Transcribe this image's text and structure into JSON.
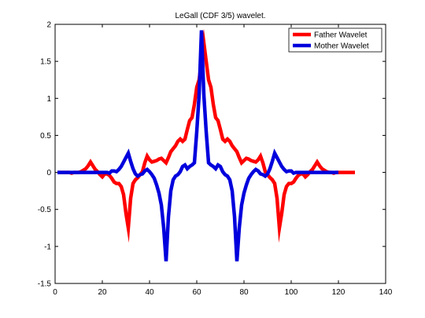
{
  "chart_data": {
    "type": "line",
    "title": "LeGall (CDF 3/5) wavelet.",
    "xlabel": "",
    "ylabel": "",
    "xlim": [
      0,
      140
    ],
    "ylim": [
      -1.5,
      2
    ],
    "xticks": [
      0,
      20,
      40,
      60,
      80,
      100,
      120,
      140
    ],
    "yticks": [
      -1.5,
      -1,
      -0.5,
      0,
      0.5,
      1,
      1.5,
      2
    ],
    "grid": false,
    "legend_position": "top-right",
    "series": [
      {
        "name": "Father Wavelet",
        "color": "#ff0000",
        "x": [
          1,
          2,
          3,
          4,
          5,
          6,
          7,
          8,
          9,
          10,
          11,
          12,
          13,
          14,
          15,
          16,
          17,
          18,
          19,
          20,
          21,
          22,
          23,
          24,
          25,
          26,
          27,
          28,
          29,
          30,
          31,
          32,
          33,
          34,
          35,
          36,
          37,
          38,
          39,
          40,
          41,
          42,
          43,
          44,
          45,
          46,
          47,
          48,
          49,
          50,
          51,
          52,
          53,
          54,
          55,
          56,
          57,
          58,
          59,
          60,
          61,
          62,
          63,
          64,
          65,
          66,
          67,
          68,
          69,
          70,
          71,
          72,
          73,
          74,
          75,
          76,
          77,
          78,
          79,
          80,
          81,
          82,
          83,
          84,
          85,
          86,
          87,
          88,
          89,
          90,
          91,
          92,
          93,
          94,
          95,
          96,
          97,
          98,
          99,
          100,
          101,
          102,
          103,
          104,
          105,
          106,
          107,
          108,
          109,
          110,
          111,
          112,
          113,
          114,
          115,
          116,
          117,
          118,
          119,
          120,
          121,
          122,
          123,
          124,
          125,
          126,
          127
        ],
        "y": [
          0,
          0,
          0,
          0,
          0,
          0,
          -0.01,
          0,
          0,
          0,
          0.01,
          0.03,
          0.05,
          0.09,
          0.14,
          0.09,
          0.04,
          0.01,
          -0.03,
          -0.06,
          -0.02,
          -0.02,
          -0.04,
          -0.08,
          -0.13,
          -0.15,
          -0.15,
          -0.19,
          -0.3,
          -0.55,
          -0.75,
          -0.35,
          -0.15,
          -0.1,
          -0.07,
          -0.03,
          0.01,
          0.13,
          0.22,
          0.17,
          0.14,
          0.15,
          0.16,
          0.18,
          0.19,
          0.16,
          0.13,
          0.2,
          0.28,
          0.32,
          0.36,
          0.42,
          0.45,
          0.42,
          0.45,
          0.58,
          0.7,
          0.74,
          0.92,
          1.15,
          1.25,
          1.5,
          1.75,
          1.5,
          1.25,
          1.15,
          0.92,
          0.74,
          0.7,
          0.58,
          0.45,
          0.42,
          0.45,
          0.42,
          0.36,
          0.32,
          0.28,
          0.2,
          0.13,
          0.16,
          0.19,
          0.18,
          0.16,
          0.15,
          0.14,
          0.17,
          0.22,
          0.13,
          0.01,
          -0.03,
          -0.07,
          -0.1,
          -0.15,
          -0.35,
          -0.75,
          -0.55,
          -0.3,
          -0.19,
          -0.15,
          -0.15,
          -0.13,
          -0.08,
          -0.04,
          -0.02,
          -0.02,
          -0.06,
          -0.03,
          0.01,
          0.04,
          0.09,
          0.14,
          0.09,
          0.05,
          0.03,
          0.01,
          0,
          0,
          -0.01,
          0,
          0,
          0,
          0,
          0,
          0,
          0,
          0,
          0
        ]
      },
      {
        "name": "Mother Wavelet",
        "color": "#0000dd",
        "x": [
          1,
          2,
          3,
          4,
          5,
          6,
          7,
          8,
          9,
          10,
          11,
          12,
          13,
          14,
          15,
          16,
          17,
          18,
          19,
          20,
          21,
          22,
          23,
          24,
          25,
          26,
          27,
          28,
          29,
          30,
          31,
          32,
          33,
          34,
          35,
          36,
          37,
          38,
          39,
          40,
          41,
          42,
          43,
          44,
          45,
          46,
          47,
          48,
          49,
          50,
          51,
          52,
          53,
          54,
          55,
          56,
          57,
          58,
          59,
          60,
          61,
          62,
          63,
          64,
          65,
          66,
          67,
          68,
          69,
          70,
          71,
          72,
          73,
          74,
          75,
          76,
          77,
          78,
          79,
          80,
          81,
          82,
          83,
          84,
          85,
          86,
          87,
          88,
          89,
          90,
          91,
          92,
          93,
          94,
          95,
          96,
          97,
          98,
          99,
          100,
          101,
          102,
          103,
          104,
          105,
          106,
          107,
          108,
          109,
          110,
          111,
          112,
          113,
          114,
          115,
          116,
          117,
          118,
          119,
          120
        ],
        "y": [
          0,
          0,
          0,
          0,
          0,
          0,
          0,
          0,
          0,
          0,
          0,
          0,
          0,
          0,
          0,
          0,
          0,
          0,
          0,
          0,
          0,
          0,
          -0.01,
          0.02,
          0.02,
          0.01,
          0.04,
          0.08,
          0.14,
          0.2,
          0.26,
          0.15,
          0.05,
          -0.02,
          -0.05,
          -0.03,
          -0.02,
          0.02,
          0.04,
          0.01,
          -0.03,
          -0.08,
          -0.17,
          -0.28,
          -0.44,
          -0.75,
          -1.2,
          -0.6,
          -0.25,
          -0.1,
          -0.05,
          -0.03,
          0.01,
          0.08,
          0.1,
          0.05,
          0.08,
          0.1,
          0.13,
          0.55,
          1.05,
          1.92,
          1.05,
          0.55,
          0.13,
          0.1,
          0.08,
          0.05,
          0.1,
          0.08,
          0.01,
          -0.03,
          -0.05,
          -0.1,
          -0.25,
          -0.6,
          -1.2,
          -0.75,
          -0.44,
          -0.28,
          -0.17,
          -0.08,
          -0.03,
          0.01,
          0.04,
          0.02,
          -0.02,
          -0.03,
          -0.05,
          -0.02,
          0.05,
          0.15,
          0.26,
          0.2,
          0.14,
          0.08,
          0.04,
          0.01,
          0.02,
          0.02,
          -0.01,
          0,
          0,
          0,
          0,
          0,
          0,
          0,
          0,
          0,
          0,
          0,
          0,
          0,
          0,
          0,
          0,
          0,
          0,
          0
        ]
      }
    ]
  }
}
